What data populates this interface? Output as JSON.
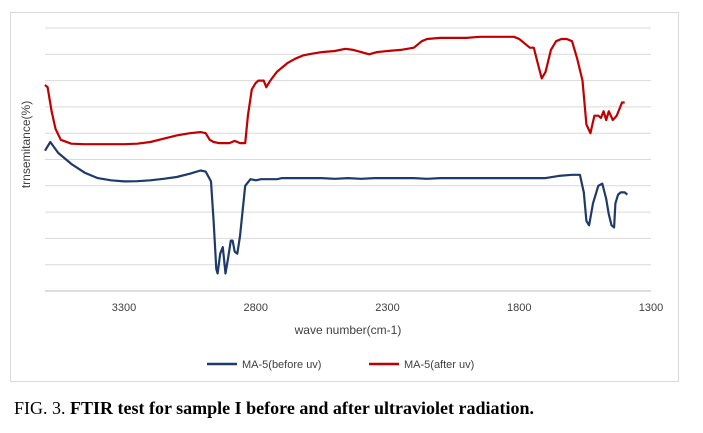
{
  "chart_data": {
    "type": "line",
    "title": "",
    "xlabel": "wave number(cm-1)",
    "ylabel": "trnsemitance(%)",
    "xlim": [
      3600,
      1300
    ],
    "x_ticks": [
      "3300",
      "2800",
      "2300",
      "1800",
      "1300"
    ],
    "grid": true,
    "legend_position": "bottom",
    "series": [
      {
        "name": "MA-5(before uv)",
        "color": "#1f3a68",
        "points": [
          [
            3600,
            44
          ],
          [
            3580,
            48
          ],
          [
            3550,
            43
          ],
          [
            3500,
            38
          ],
          [
            3450,
            34
          ],
          [
            3400,
            31.5
          ],
          [
            3350,
            30.5
          ],
          [
            3300,
            30
          ],
          [
            3250,
            30.1
          ],
          [
            3200,
            30.5
          ],
          [
            3150,
            31.2
          ],
          [
            3100,
            32
          ],
          [
            3050,
            33.5
          ],
          [
            3010,
            35
          ],
          [
            2990,
            34.5
          ],
          [
            2970,
            30
          ],
          [
            2960,
            12
          ],
          [
            2950,
            -10
          ],
          [
            2945,
            -12
          ],
          [
            2935,
            -3
          ],
          [
            2925,
            0
          ],
          [
            2915,
            -12
          ],
          [
            2905,
            -5
          ],
          [
            2895,
            3
          ],
          [
            2888,
            3
          ],
          [
            2880,
            -2
          ],
          [
            2870,
            -3
          ],
          [
            2860,
            5
          ],
          [
            2840,
            28
          ],
          [
            2820,
            31
          ],
          [
            2800,
            30.5
          ],
          [
            2780,
            31
          ],
          [
            2750,
            31
          ],
          [
            2720,
            31
          ],
          [
            2700,
            31.5
          ],
          [
            2650,
            31.5
          ],
          [
            2600,
            31.5
          ],
          [
            2550,
            31.5
          ],
          [
            2500,
            31.2
          ],
          [
            2450,
            31.5
          ],
          [
            2400,
            31.2
          ],
          [
            2350,
            31.5
          ],
          [
            2300,
            31.5
          ],
          [
            2250,
            31.5
          ],
          [
            2200,
            31.5
          ],
          [
            2150,
            31.2
          ],
          [
            2100,
            31.5
          ],
          [
            2050,
            31.5
          ],
          [
            2000,
            31.5
          ],
          [
            1950,
            31.5
          ],
          [
            1900,
            31.5
          ],
          [
            1850,
            31.5
          ],
          [
            1800,
            31.5
          ],
          [
            1750,
            31.5
          ],
          [
            1700,
            31.5
          ],
          [
            1650,
            32.5
          ],
          [
            1600,
            33
          ],
          [
            1570,
            33
          ],
          [
            1555,
            25
          ],
          [
            1545,
            12
          ],
          [
            1535,
            10
          ],
          [
            1520,
            20
          ],
          [
            1500,
            28
          ],
          [
            1485,
            29
          ],
          [
            1470,
            22
          ],
          [
            1460,
            15
          ],
          [
            1450,
            10
          ],
          [
            1440,
            9
          ],
          [
            1435,
            20
          ],
          [
            1425,
            24
          ],
          [
            1415,
            25
          ],
          [
            1400,
            25
          ],
          [
            1390,
            24
          ]
        ]
      },
      {
        "name": "MA-5(after uv)",
        "color": "#c00000",
        "points": [
          [
            3600,
            74
          ],
          [
            3590,
            73
          ],
          [
            3575,
            62
          ],
          [
            3560,
            54
          ],
          [
            3540,
            49
          ],
          [
            3500,
            47.2
          ],
          [
            3450,
            47
          ],
          [
            3400,
            47
          ],
          [
            3350,
            47
          ],
          [
            3300,
            47
          ],
          [
            3250,
            47.2
          ],
          [
            3200,
            48
          ],
          [
            3150,
            49.5
          ],
          [
            3100,
            51
          ],
          [
            3050,
            52
          ],
          [
            3010,
            52.5
          ],
          [
            2990,
            52
          ],
          [
            2975,
            49
          ],
          [
            2960,
            48
          ],
          [
            2940,
            47.5
          ],
          [
            2920,
            47.5
          ],
          [
            2900,
            47.5
          ],
          [
            2880,
            48.5
          ],
          [
            2860,
            47.5
          ],
          [
            2840,
            47.5
          ],
          [
            2830,
            60
          ],
          [
            2815,
            72
          ],
          [
            2800,
            75
          ],
          [
            2790,
            76
          ],
          [
            2770,
            76
          ],
          [
            2760,
            73
          ],
          [
            2745,
            76
          ],
          [
            2720,
            80
          ],
          [
            2700,
            82
          ],
          [
            2680,
            84
          ],
          [
            2650,
            86
          ],
          [
            2620,
            87.5
          ],
          [
            2600,
            88
          ],
          [
            2550,
            89
          ],
          [
            2500,
            89.5
          ],
          [
            2460,
            90.5
          ],
          [
            2430,
            90
          ],
          [
            2400,
            89
          ],
          [
            2370,
            88
          ],
          [
            2340,
            89
          ],
          [
            2300,
            89.5
          ],
          [
            2250,
            90
          ],
          [
            2200,
            91
          ],
          [
            2170,
            94
          ],
          [
            2150,
            95
          ],
          [
            2100,
            95.5
          ],
          [
            2050,
            95.5
          ],
          [
            2000,
            95.5
          ],
          [
            1950,
            96
          ],
          [
            1900,
            96
          ],
          [
            1850,
            96
          ],
          [
            1820,
            96
          ],
          [
            1800,
            95
          ],
          [
            1780,
            93
          ],
          [
            1760,
            91
          ],
          [
            1745,
            91
          ],
          [
            1730,
            84
          ],
          [
            1715,
            77
          ],
          [
            1700,
            80
          ],
          [
            1680,
            90
          ],
          [
            1660,
            94
          ],
          [
            1640,
            95
          ],
          [
            1620,
            95
          ],
          [
            1600,
            94
          ],
          [
            1580,
            86
          ],
          [
            1560,
            76
          ],
          [
            1545,
            56
          ],
          [
            1530,
            52
          ],
          [
            1515,
            60
          ],
          [
            1500,
            60
          ],
          [
            1490,
            59
          ],
          [
            1480,
            62
          ],
          [
            1470,
            58
          ],
          [
            1460,
            62
          ],
          [
            1445,
            58
          ],
          [
            1430,
            60
          ],
          [
            1420,
            63
          ],
          [
            1410,
            66
          ],
          [
            1400,
            66
          ]
        ]
      }
    ]
  },
  "caption": {
    "fig_label": "FIG. 3.",
    "text": "FTIR test for sample I before and after ultraviolet radiation."
  }
}
